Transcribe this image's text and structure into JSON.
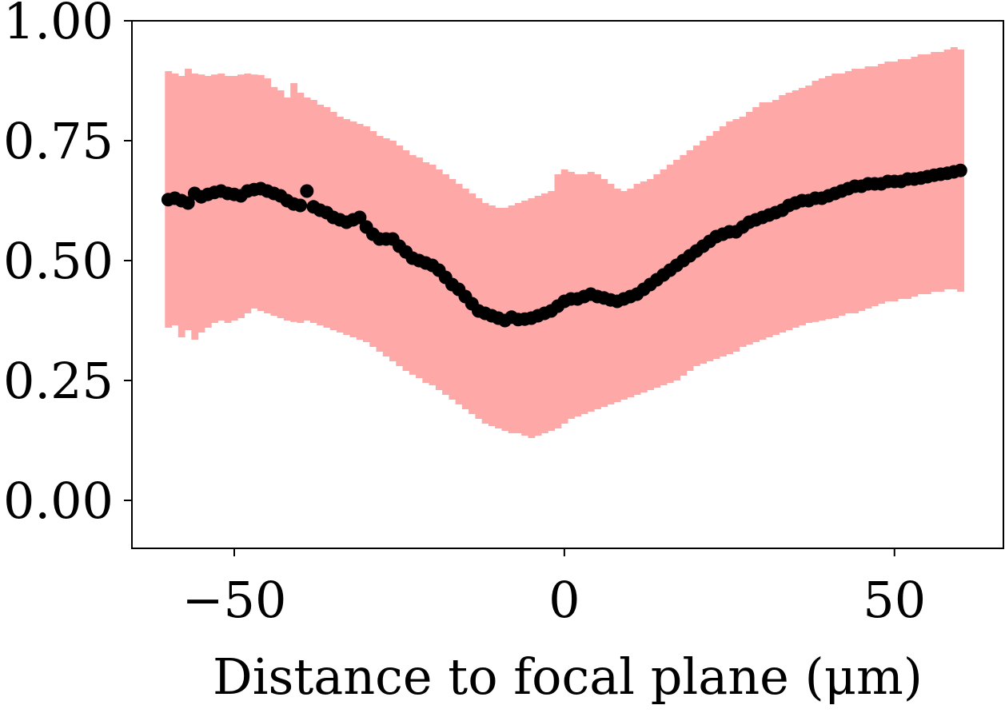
{
  "chart_data": {
    "type": "scatter",
    "title": "",
    "xlabel": "Distance to focal plane (μm)",
    "ylabel": "",
    "xlim": [
      -65.5,
      66.5
    ],
    "ylim": [
      -0.1,
      1.0
    ],
    "x_ticks": [
      -50,
      0,
      50
    ],
    "x_tick_labels": [
      "−50",
      "0",
      "50"
    ],
    "y_ticks": [
      0.0,
      0.25,
      0.5,
      0.75,
      1.0
    ],
    "y_tick_labels": [
      "0.00",
      "0.25",
      "0.50",
      "0.75",
      "1.00"
    ],
    "grid": false,
    "colors": {
      "band": "#ffa8a8",
      "points": "#000000"
    },
    "series": [
      {
        "type": "scatter",
        "x": [
          -60,
          -59,
          -58,
          -57,
          -56,
          -55,
          -54,
          -53,
          -52,
          -51,
          -50,
          -49,
          -48,
          -47,
          -46,
          -45,
          -44,
          -43,
          -42,
          -41,
          -40,
          -39,
          -38,
          -37,
          -36,
          -35,
          -34,
          -33,
          -32,
          -31,
          -30,
          -29,
          -28,
          -27,
          -26,
          -25,
          -24,
          -23,
          -22,
          -21,
          -20,
          -19,
          -18,
          -17,
          -16,
          -15,
          -14,
          -13,
          -12,
          -11,
          -10,
          -9,
          -8,
          -7,
          -6,
          -5,
          -4,
          -3,
          -2,
          -1,
          0,
          1,
          2,
          3,
          4,
          5,
          6,
          7,
          8,
          9,
          10,
          11,
          12,
          13,
          14,
          15,
          16,
          17,
          18,
          19,
          20,
          21,
          22,
          23,
          24,
          25,
          26,
          27,
          28,
          29,
          30,
          31,
          32,
          33,
          34,
          35,
          36,
          37,
          38,
          39,
          40,
          41,
          42,
          43,
          44,
          45,
          46,
          47,
          48,
          49,
          50,
          51,
          52,
          53,
          54,
          55,
          56,
          57,
          58,
          59,
          60
        ],
        "y": [
          0.627,
          0.63,
          0.625,
          0.62,
          0.64,
          0.633,
          0.638,
          0.642,
          0.645,
          0.64,
          0.638,
          0.635,
          0.645,
          0.648,
          0.65,
          0.645,
          0.64,
          0.635,
          0.625,
          0.618,
          0.615,
          0.645,
          0.612,
          0.605,
          0.6,
          0.59,
          0.585,
          0.58,
          0.585,
          0.59,
          0.57,
          0.555,
          0.545,
          0.545,
          0.545,
          0.53,
          0.518,
          0.505,
          0.5,
          0.495,
          0.49,
          0.48,
          0.465,
          0.45,
          0.44,
          0.425,
          0.41,
          0.395,
          0.39,
          0.385,
          0.38,
          0.375,
          0.382,
          0.377,
          0.378,
          0.38,
          0.385,
          0.39,
          0.395,
          0.405,
          0.415,
          0.42,
          0.42,
          0.425,
          0.43,
          0.425,
          0.422,
          0.418,
          0.415,
          0.42,
          0.425,
          0.43,
          0.44,
          0.45,
          0.46,
          0.47,
          0.48,
          0.49,
          0.5,
          0.51,
          0.52,
          0.53,
          0.54,
          0.55,
          0.555,
          0.56,
          0.56,
          0.57,
          0.58,
          0.585,
          0.59,
          0.595,
          0.6,
          0.605,
          0.615,
          0.62,
          0.625,
          0.625,
          0.63,
          0.63,
          0.635,
          0.64,
          0.645,
          0.65,
          0.655,
          0.655,
          0.66,
          0.66,
          0.66,
          0.665,
          0.665,
          0.665,
          0.67,
          0.67,
          0.672,
          0.675,
          0.678,
          0.68,
          0.682,
          0.685,
          0.688
        ]
      },
      {
        "type": "band",
        "x": [
          -60,
          -59,
          -58,
          -57,
          -56,
          -55,
          -54,
          -53,
          -52,
          -51,
          -50,
          -49,
          -48,
          -47,
          -46,
          -45,
          -44,
          -43,
          -42,
          -41,
          -40,
          -39,
          -38,
          -37,
          -36,
          -35,
          -34,
          -33,
          -32,
          -31,
          -30,
          -29,
          -28,
          -27,
          -26,
          -25,
          -24,
          -23,
          -22,
          -21,
          -20,
          -19,
          -18,
          -17,
          -16,
          -15,
          -14,
          -13,
          -12,
          -11,
          -10,
          -9,
          -8,
          -7,
          -6,
          -5,
          -4,
          -3,
          -2,
          -1,
          0,
          1,
          2,
          3,
          4,
          5,
          6,
          7,
          8,
          9,
          10,
          11,
          12,
          13,
          14,
          15,
          16,
          17,
          18,
          19,
          20,
          21,
          22,
          23,
          24,
          25,
          26,
          27,
          28,
          29,
          30,
          31,
          32,
          33,
          34,
          35,
          36,
          37,
          38,
          39,
          40,
          41,
          42,
          43,
          44,
          45,
          46,
          47,
          48,
          49,
          50,
          51,
          52,
          53,
          54,
          55,
          56,
          57,
          58,
          59,
          60
        ],
        "upper": [
          0.895,
          0.89,
          0.885,
          0.9,
          0.89,
          0.888,
          0.885,
          0.888,
          0.89,
          0.885,
          0.885,
          0.888,
          0.89,
          0.888,
          0.887,
          0.88,
          0.862,
          0.855,
          0.84,
          0.87,
          0.85,
          0.84,
          0.835,
          0.825,
          0.82,
          0.81,
          0.8,
          0.795,
          0.79,
          0.785,
          0.78,
          0.77,
          0.76,
          0.755,
          0.75,
          0.74,
          0.73,
          0.72,
          0.715,
          0.705,
          0.7,
          0.69,
          0.68,
          0.67,
          0.66,
          0.65,
          0.64,
          0.63,
          0.62,
          0.615,
          0.61,
          0.61,
          0.615,
          0.62,
          0.625,
          0.63,
          0.635,
          0.64,
          0.645,
          0.68,
          0.69,
          0.685,
          0.68,
          0.68,
          0.685,
          0.68,
          0.67,
          0.66,
          0.65,
          0.645,
          0.65,
          0.66,
          0.665,
          0.67,
          0.68,
          0.69,
          0.7,
          0.71,
          0.72,
          0.73,
          0.74,
          0.75,
          0.76,
          0.77,
          0.78,
          0.79,
          0.795,
          0.8,
          0.81,
          0.82,
          0.83,
          0.83,
          0.835,
          0.845,
          0.85,
          0.855,
          0.86,
          0.865,
          0.875,
          0.88,
          0.885,
          0.89,
          0.89,
          0.895,
          0.9,
          0.9,
          0.905,
          0.905,
          0.91,
          0.915,
          0.915,
          0.92,
          0.92,
          0.925,
          0.93,
          0.93,
          0.935,
          0.935,
          0.94,
          0.945,
          0.94
        ],
        "lower": [
          0.36,
          0.365,
          0.34,
          0.355,
          0.335,
          0.35,
          0.36,
          0.37,
          0.375,
          0.37,
          0.375,
          0.38,
          0.39,
          0.4,
          0.395,
          0.39,
          0.385,
          0.38,
          0.375,
          0.372,
          0.37,
          0.375,
          0.37,
          0.365,
          0.36,
          0.355,
          0.35,
          0.345,
          0.34,
          0.335,
          0.33,
          0.32,
          0.31,
          0.3,
          0.29,
          0.28,
          0.27,
          0.262,
          0.255,
          0.245,
          0.24,
          0.23,
          0.22,
          0.21,
          0.2,
          0.19,
          0.18,
          0.17,
          0.16,
          0.155,
          0.15,
          0.145,
          0.14,
          0.14,
          0.135,
          0.13,
          0.135,
          0.14,
          0.145,
          0.15,
          0.16,
          0.17,
          0.175,
          0.18,
          0.185,
          0.19,
          0.195,
          0.2,
          0.205,
          0.21,
          0.215,
          0.22,
          0.225,
          0.23,
          0.235,
          0.24,
          0.245,
          0.25,
          0.26,
          0.27,
          0.28,
          0.285,
          0.29,
          0.295,
          0.3,
          0.305,
          0.31,
          0.32,
          0.325,
          0.33,
          0.335,
          0.34,
          0.345,
          0.35,
          0.355,
          0.36,
          0.365,
          0.37,
          0.372,
          0.375,
          0.378,
          0.38,
          0.385,
          0.39,
          0.39,
          0.395,
          0.4,
          0.405,
          0.41,
          0.415,
          0.415,
          0.42,
          0.42,
          0.425,
          0.43,
          0.43,
          0.435,
          0.435,
          0.44,
          0.44,
          0.435
        ]
      }
    ]
  }
}
